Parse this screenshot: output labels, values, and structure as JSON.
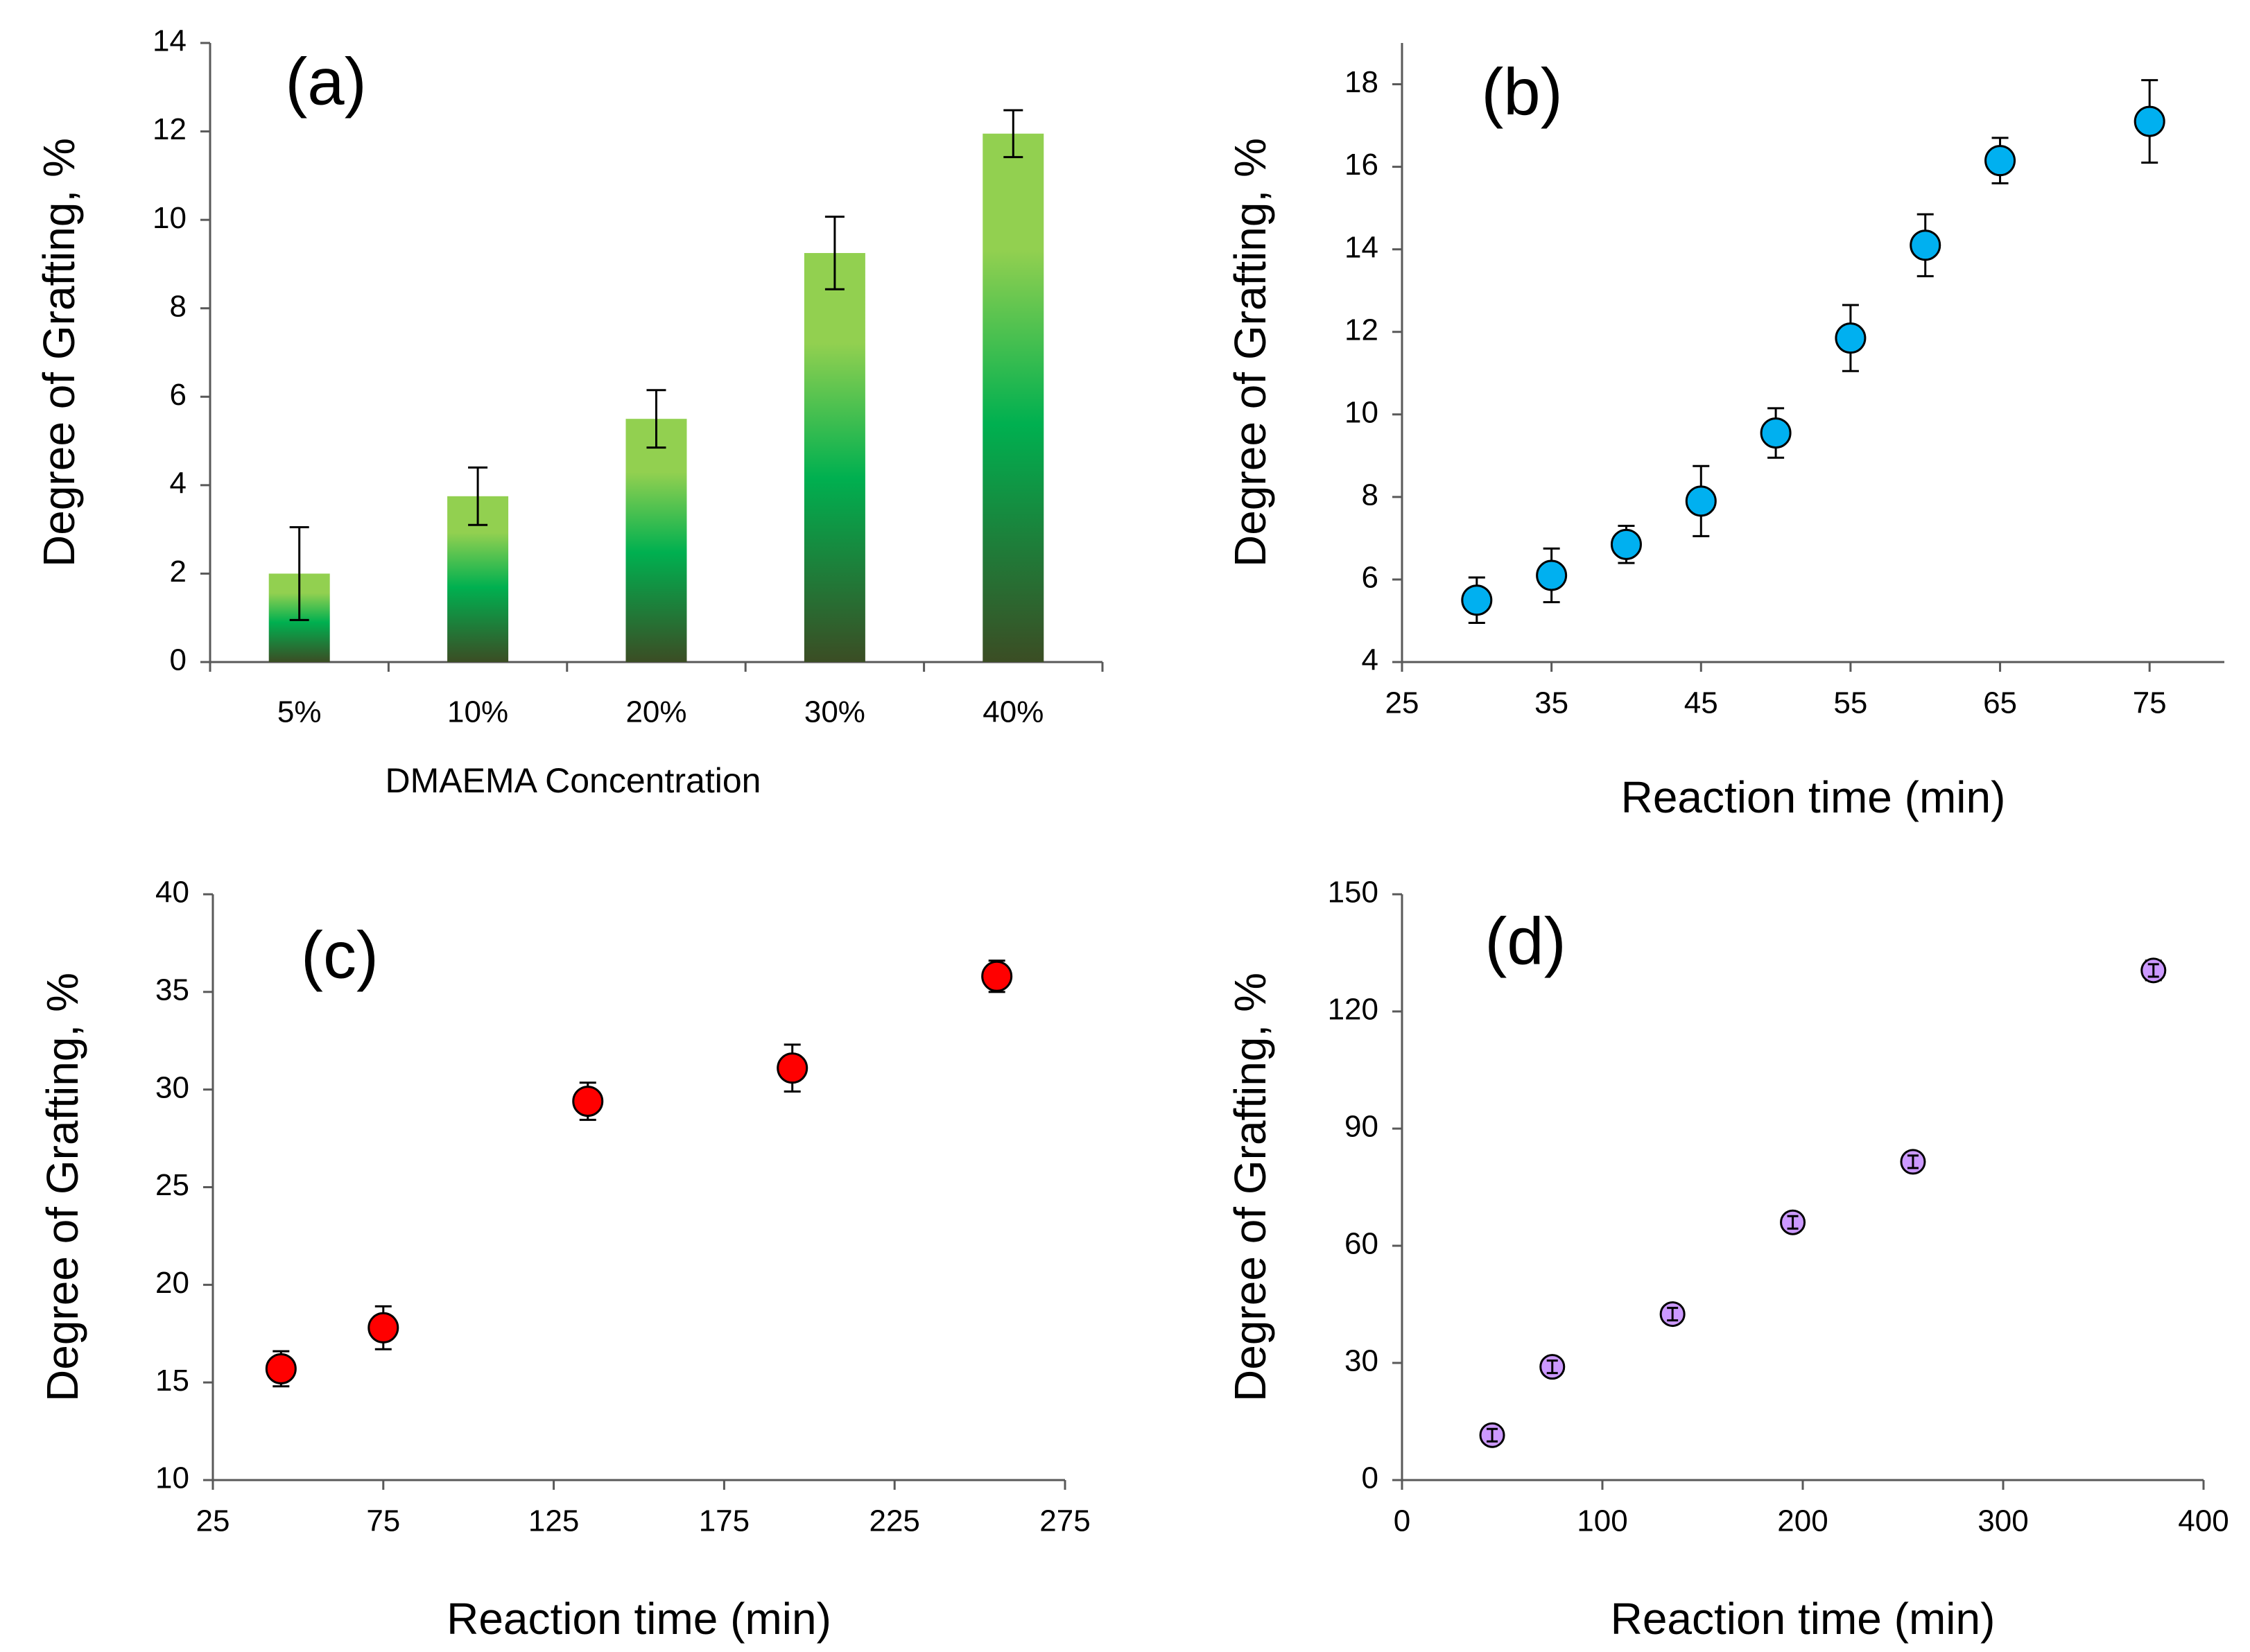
{
  "chart_data": [
    {
      "id": "a",
      "type": "bar",
      "panel_label": "(a)",
      "categories": [
        "5%",
        "10%",
        "20%",
        "30%",
        "40%"
      ],
      "values": [
        2.0,
        3.75,
        5.5,
        9.25,
        11.95
      ],
      "errors": [
        1.05,
        0.65,
        0.65,
        0.82,
        0.53
      ],
      "xlabel": "DMAEMA Concentration",
      "ylabel": "Degree of Grafting, %",
      "ylim": [
        0,
        14
      ],
      "yticks": [
        0,
        2,
        4,
        6,
        8,
        10,
        12,
        14
      ],
      "colors": {
        "bar_top": "#92d050",
        "bar_mid": "#00b050",
        "bar_bottom": "#3b4d24"
      }
    },
    {
      "id": "b",
      "type": "scatter",
      "panel_label": "(b)",
      "x": [
        30,
        35,
        40,
        45,
        50,
        55,
        60,
        65,
        75
      ],
      "y": [
        5.5,
        6.1,
        6.85,
        7.9,
        9.55,
        11.85,
        14.1,
        16.15,
        17.1
      ],
      "errors": [
        0.55,
        0.65,
        0.45,
        0.85,
        0.6,
        0.8,
        0.75,
        0.55,
        1.0
      ],
      "xlabel": "Reaction time (min)",
      "ylabel": "Degree of Grafting, %",
      "xlim": [
        25,
        80
      ],
      "ylim": [
        4,
        19
      ],
      "xticks": [
        25,
        35,
        45,
        55,
        65,
        75
      ],
      "yticks": [
        4,
        6,
        8,
        10,
        12,
        14,
        16,
        18
      ],
      "colors": {
        "marker": "#00b0f0"
      }
    },
    {
      "id": "c",
      "type": "scatter",
      "panel_label": "(c)",
      "x": [
        45,
        75,
        135,
        195,
        255
      ],
      "y": [
        15.7,
        17.8,
        29.4,
        31.1,
        35.8
      ],
      "errors": [
        0.9,
        1.1,
        0.95,
        1.2,
        0.8
      ],
      "xlabel": "Reaction time (min)",
      "ylabel": "Degree of Grafting, %",
      "xlim": [
        25,
        275
      ],
      "ylim": [
        10,
        40
      ],
      "xticks": [
        25,
        75,
        125,
        175,
        225,
        275
      ],
      "yticks": [
        10,
        15,
        20,
        25,
        30,
        35,
        40
      ],
      "colors": {
        "marker": "#ff0000"
      }
    },
    {
      "id": "d",
      "type": "scatter",
      "panel_label": "(d)",
      "x": [
        45,
        75,
        135,
        195,
        255,
        375
      ],
      "y": [
        11.5,
        29,
        42.5,
        66,
        81.5,
        130.5
      ],
      "errors": [
        1.5,
        1.5,
        1.5,
        2,
        2,
        2.5
      ],
      "xlabel": "Reaction time (min)",
      "ylabel": "Degree of Grafting, %",
      "xlim": [
        0,
        400
      ],
      "ylim": [
        0,
        150
      ],
      "xticks": [
        0,
        100,
        200,
        300,
        400
      ],
      "yticks": [
        0,
        30,
        60,
        90,
        120,
        150
      ],
      "colors": {
        "marker": "#cc99ff"
      }
    }
  ]
}
